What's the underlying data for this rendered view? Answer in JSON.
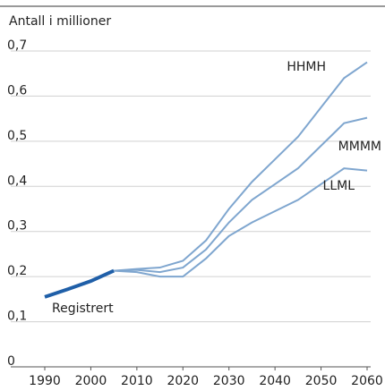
{
  "chart_data": {
    "type": "line",
    "title": "Antall i millioner",
    "xlim": [
      1990,
      2060
    ],
    "xticks": [
      1990,
      2000,
      2010,
      2020,
      2030,
      2040,
      2050,
      2060
    ],
    "ylim": [
      0,
      0.7
    ],
    "yticks": [
      0,
      {
        "value": 0.1,
        "label": "0,1"
      },
      {
        "value": 0.2,
        "label": "0,2"
      },
      {
        "value": 0.3,
        "label": "0,3"
      },
      {
        "value": 0.4,
        "label": "0,4"
      },
      {
        "value": 0.5,
        "label": "0,5"
      },
      {
        "value": 0.6,
        "label": "0,6"
      },
      {
        "value": 0.7,
        "label": "0,7"
      }
    ],
    "grid": true,
    "series": [
      {
        "name": "Registrert",
        "color": "#1f5fa8",
        "x": [
          1990,
          1995,
          2000,
          2005
        ],
        "values": [
          0.155,
          0.172,
          0.19,
          0.213
        ]
      },
      {
        "name": "HHMH",
        "color": "#7fa6cf",
        "x": [
          2005,
          2010,
          2015,
          2020,
          2025,
          2030,
          2035,
          2040,
          2045,
          2050,
          2055,
          2060
        ],
        "values": [
          0.213,
          0.217,
          0.22,
          0.235,
          0.28,
          0.35,
          0.41,
          0.46,
          0.51,
          0.575,
          0.64,
          0.675
        ]
      },
      {
        "name": "MMMM",
        "color": "#7fa6cf",
        "x": [
          2005,
          2010,
          2015,
          2020,
          2025,
          2030,
          2035,
          2040,
          2045,
          2050,
          2055,
          2060
        ],
        "values": [
          0.213,
          0.215,
          0.21,
          0.22,
          0.26,
          0.32,
          0.37,
          0.405,
          0.44,
          0.49,
          0.54,
          0.552
        ]
      },
      {
        "name": "LLML",
        "color": "#7fa6cf",
        "x": [
          2005,
          2010,
          2015,
          2020,
          2025,
          2030,
          2035,
          2040,
          2045,
          2050,
          2055,
          2060
        ],
        "values": [
          0.213,
          0.21,
          0.2,
          0.2,
          0.24,
          0.29,
          0.32,
          0.345,
          0.37,
          0.405,
          0.44,
          0.435
        ]
      }
    ]
  }
}
